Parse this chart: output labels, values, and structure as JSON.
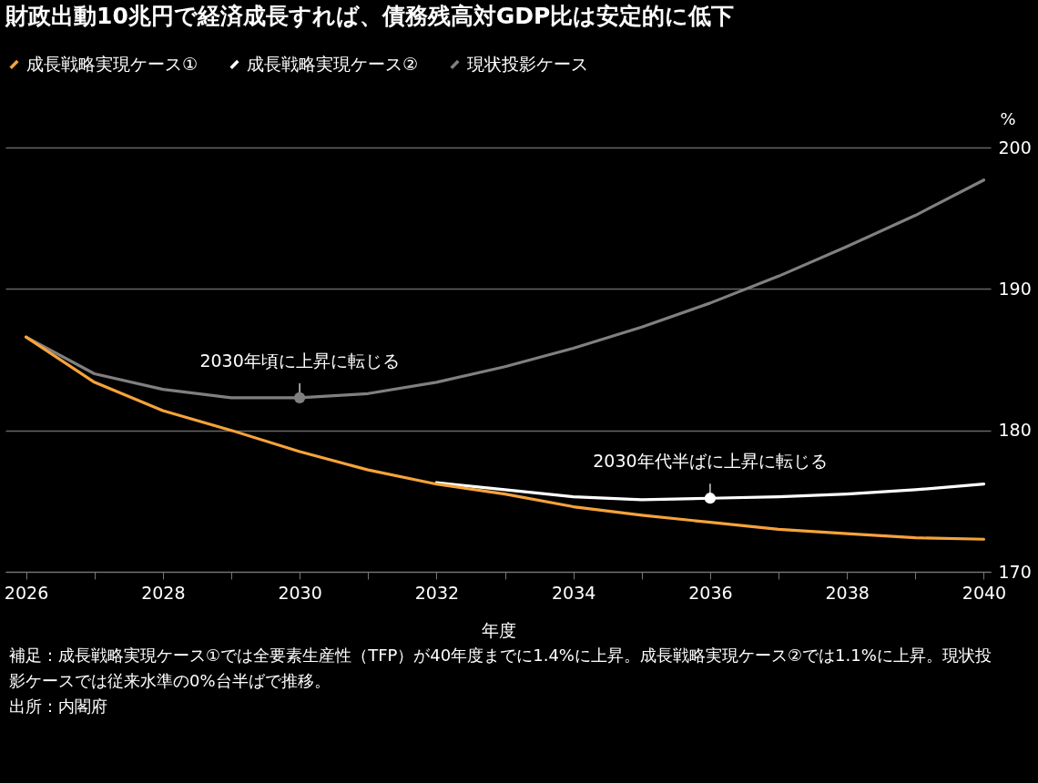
{
  "chart_data": {
    "type": "line",
    "title": "財政出動10兆円で経済成長すれば、債務残高対GDP比は安定的に低下",
    "xlabel": "年度",
    "ylabel": "%",
    "x": [
      2026,
      2027,
      2028,
      2029,
      2030,
      2031,
      2032,
      2033,
      2034,
      2035,
      2036,
      2037,
      2038,
      2039,
      2040
    ],
    "series": [
      {
        "name": "成長戦略実現ケース①",
        "color": "#f5a33a",
        "values": [
          186.6,
          183.4,
          181.4,
          180.0,
          178.5,
          177.2,
          176.2,
          175.5,
          174.6,
          174.0,
          173.5,
          173.0,
          172.7,
          172.4,
          172.3
        ]
      },
      {
        "name": "成長戦略実現ケース②",
        "color": "#ffffff",
        "values": [
          null,
          null,
          null,
          null,
          null,
          null,
          176.3,
          175.8,
          175.3,
          175.1,
          175.2,
          175.3,
          175.5,
          175.8,
          176.2
        ]
      },
      {
        "name": "現状投影ケース",
        "color": "#808080",
        "values": [
          186.6,
          184.0,
          182.9,
          182.3,
          182.3,
          182.6,
          183.4,
          184.5,
          185.8,
          187.3,
          189.0,
          190.9,
          193.0,
          195.2,
          197.7
        ]
      }
    ],
    "xlim": [
      2025.7,
      2040.1
    ],
    "xticks": [
      2026,
      {
        "value": 2027,
        "label": null
      },
      2028,
      {
        "value": 2029,
        "label": null
      },
      2030,
      {
        "value": 2031,
        "label": null
      },
      2032,
      {
        "value": 2033,
        "label": null
      },
      2034,
      {
        "value": 2035,
        "label": null
      },
      2036,
      {
        "value": 2037,
        "label": null
      },
      2038,
      {
        "value": 2039,
        "label": null
      },
      2040
    ],
    "ylim": [
      170,
      200
    ],
    "yticks": [
      170,
      180,
      190,
      200
    ],
    "grid": "y",
    "legend": "top left",
    "marker": "none",
    "line_style": "solid",
    "annotations": [
      {
        "text": "2030年頃に上昇に転じる",
        "x": 2030,
        "y": 182.3
      },
      {
        "text": "2030年代半ばに上昇に転じる",
        "x": 2036,
        "y": 175.2
      },
      "補足：成長戦略実現ケース①では全要素生産性（TFP）が40年度までに1.4%に上昇。成長戦略実現ケース②では1.1%に上昇。現状投影ケースでは従来水準の0%台半ばで推移。",
      "出所：内閣府"
    ]
  }
}
